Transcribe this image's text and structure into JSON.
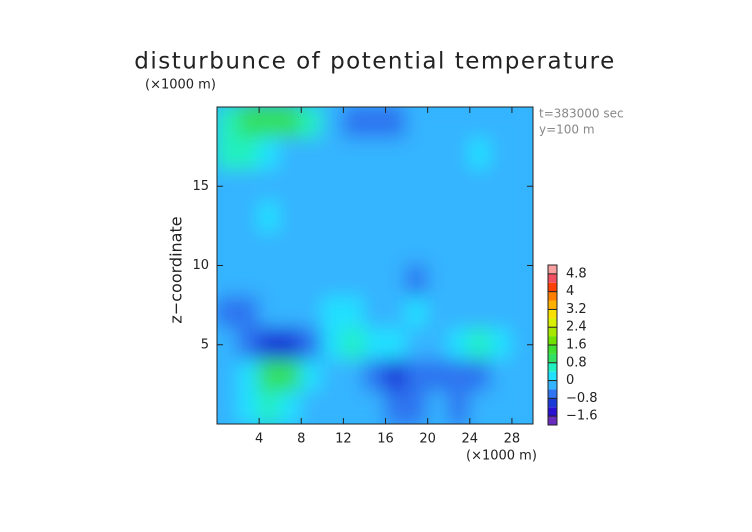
{
  "chart_data": {
    "type": "contour",
    "title": "disturbunce of potential temperature",
    "y_unit": "(×1000 m)",
    "x_unit": "(×1000 m)",
    "ylabel": "z−coordinate",
    "annotations": [
      "t=383000 sec",
      "y=100 m"
    ],
    "xlim": [
      0,
      30
    ],
    "ylim": [
      0,
      20
    ],
    "xticks": [
      4,
      8,
      12,
      16,
      20,
      24,
      28
    ],
    "yticks": [
      5,
      10,
      15
    ],
    "x": [
      1,
      3,
      5,
      7,
      9,
      11,
      13,
      15,
      17,
      19,
      21,
      23,
      25,
      27,
      29
    ],
    "z": [
      19,
      17,
      15,
      13,
      11,
      9,
      7,
      5,
      3,
      1
    ],
    "values": [
      [
        0.4,
        0.8,
        1.0,
        1.0,
        0.4,
        -0.4,
        -0.8,
        -0.8,
        -0.8,
        -0.4,
        -0.4,
        -0.4,
        -0.4,
        -0.2,
        -0.2
      ],
      [
        0.6,
        0.4,
        0.2,
        -0.2,
        -0.4,
        -0.4,
        -0.4,
        -0.4,
        -0.4,
        -0.4,
        -0.2,
        -0.4,
        0,
        -0.2,
        -0.4
      ],
      [
        -0.4,
        -0.2,
        -0.2,
        -0.2,
        -0.4,
        -0.4,
        -0.4,
        -0.4,
        -0.4,
        -0.4,
        -0.4,
        -0.2,
        -0.4,
        -0.2,
        -0.2
      ],
      [
        -0.4,
        -0.2,
        0,
        -0.2,
        -0.4,
        -0.4,
        -0.4,
        -0.4,
        -0.4,
        -0.4,
        -0.4,
        -0.2,
        -0.2,
        -0.4,
        -0.4
      ],
      [
        -0.4,
        -0.4,
        -0.4,
        -0.4,
        -0.4,
        -0.4,
        -0.4,
        -0.4,
        -0.4,
        -0.4,
        -0.4,
        -0.4,
        -0.2,
        -0.4,
        -0.4
      ],
      [
        -0.4,
        -0.4,
        -0.4,
        -0.2,
        -0.2,
        -0.2,
        -0.2,
        -0.4,
        -0.4,
        -0.6,
        -0.2,
        -0.2,
        -0.4,
        -0.4,
        -0.4
      ],
      [
        -0.6,
        -0.6,
        -0.4,
        -0.2,
        -0.2,
        0,
        0.2,
        -0.2,
        -0.4,
        0,
        -0.2,
        -0.4,
        -0.4,
        -0.4,
        -0.4
      ],
      [
        -0.4,
        -0.8,
        -1.0,
        -1.2,
        -0.8,
        0,
        0.4,
        0.2,
        0,
        -0.2,
        -0.4,
        0.2,
        0.4,
        0.2,
        -0.2
      ],
      [
        -0.2,
        0.2,
        0.8,
        1.0,
        0.2,
        -0.4,
        -0.4,
        -0.8,
        -1.2,
        -0.8,
        -0.6,
        -0.8,
        -0.6,
        -0.4,
        -0.2
      ],
      [
        -0.4,
        0.2,
        0.4,
        0.2,
        -0.4,
        -0.2,
        -0.4,
        -0.4,
        -0.8,
        -0.6,
        -0.4,
        -0.6,
        -0.4,
        -0.2,
        -0.4
      ]
    ],
    "colorbar": {
      "range": [
        -2.0,
        5.2
      ],
      "ticks": [
        {
          "value": -1.6,
          "label": "−1.6"
        },
        {
          "value": -0.8,
          "label": "−0.8"
        },
        0,
        0.8,
        1.6,
        2.4,
        3.2,
        4,
        4.8
      ],
      "colors": [
        "#6a2bc0",
        "#2a10d0",
        "#1a3ad8",
        "#2f74f0",
        "#34b4ff",
        "#22e0ff",
        "#20f0c0",
        "#30e060",
        "#40e030",
        "#70e000",
        "#a8e800",
        "#d8f000",
        "#f8e000",
        "#ffb000",
        "#ff8000",
        "#ff4000",
        "#f05060",
        "#f8a0a0"
      ]
    }
  }
}
